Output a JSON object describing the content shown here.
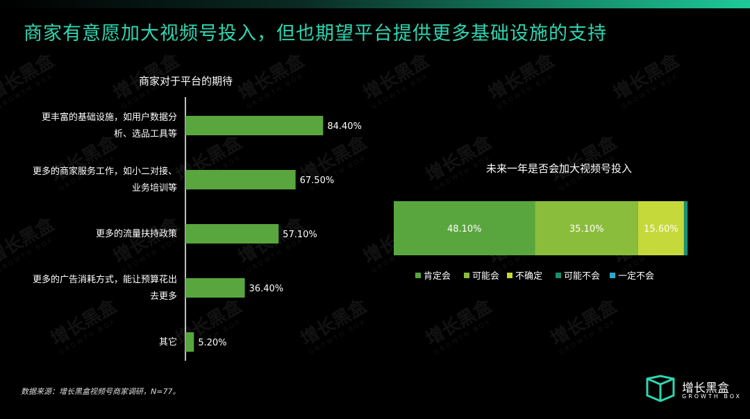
{
  "header": {
    "title": "商家有意愿加大视频号投入，但也期望平台提供更多基础设施的支持"
  },
  "watermark": {
    "brand": "增长黑盒",
    "sub": "GROWTH BOX"
  },
  "colors": {
    "accent": "#2fd6b0",
    "bar": "#5aa63e",
    "yes": "#5aa63e",
    "maybe": "#8bbd3c",
    "unsure": "#c6d93b",
    "maybe_no": "#1a8f6e",
    "no": "#2aa9c9"
  },
  "chart_data": [
    {
      "type": "bar",
      "orientation": "horizontal",
      "title": "商家对于平台的期待",
      "categories": [
        [
          "更丰富的基础设施，如用户数据分",
          "析、选品工具等"
        ],
        [
          "更多的商家服务工作，如小二对接、",
          "业务培训等"
        ],
        [
          "更多的流量扶持政策"
        ],
        [
          "更多的广告消耗方式，能让预算花出",
          "去更多"
        ],
        [
          "其它"
        ]
      ],
      "values": [
        84.4,
        67.5,
        57.1,
        36.4,
        5.2
      ],
      "value_labels": [
        "84.40%",
        "67.50%",
        "57.10%",
        "36.40%",
        "5.20%"
      ],
      "xlim": [
        0,
        100
      ]
    },
    {
      "type": "bar",
      "orientation": "horizontal-stacked-100",
      "title": "未来一年是否会加大视频号投入",
      "series": [
        {
          "name": "肯定会",
          "value": 48.1,
          "label": "48.10%"
        },
        {
          "name": "可能会",
          "value": 35.1,
          "label": "35.10%"
        },
        {
          "name": "不确定",
          "value": 15.6,
          "label": "15.60%"
        },
        {
          "name": "可能不会",
          "value": 1.0,
          "label": ""
        },
        {
          "name": "一定不会",
          "value": 0.2,
          "label": ""
        }
      ],
      "legend": "bottom"
    }
  ],
  "footer": {
    "source": "数据来源：增长黑盒视频号商家调研，N=77。",
    "logo_text": "增长黑盒",
    "logo_sub": "GROWTH BOX"
  }
}
